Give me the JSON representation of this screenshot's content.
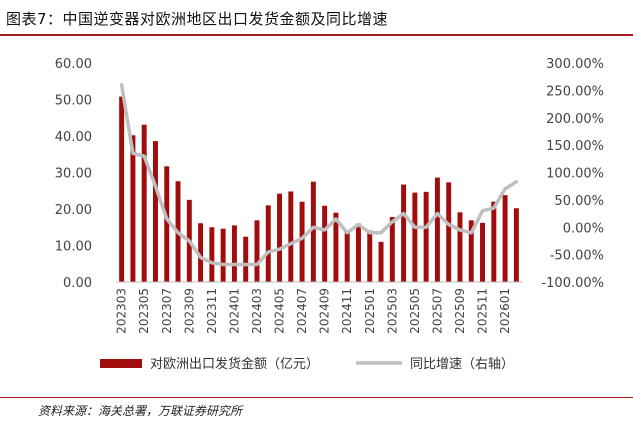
{
  "header": {
    "title": "图表7：中国逆变器对欧洲地区出口发货金额及同比增速"
  },
  "footer": {
    "source": "资料来源：海关总署，万联证券研究所"
  },
  "colors": {
    "bar": "#a10d0d",
    "line": "#bfbfbf",
    "accent": "#9c1b1b"
  },
  "chart_data": {
    "type": "bar",
    "x": [
      "202303",
      "202304",
      "202305",
      "202306",
      "202307",
      "202308",
      "202309",
      "202310",
      "202311",
      "202312",
      "202401",
      "202402",
      "202403",
      "202404",
      "202405",
      "202406",
      "202407",
      "202408",
      "202409",
      "202410",
      "202411",
      "202412",
      "202501",
      "202502",
      "202503",
      "202504",
      "202505",
      "202506",
      "202507",
      "202508",
      "202509",
      "202510",
      "202511",
      "202512",
      "202601",
      "202602"
    ],
    "x_tick_labels": [
      "202303",
      "202305",
      "202307",
      "202309",
      "202311",
      "202401",
      "202403",
      "202405",
      "202407",
      "202409",
      "202411",
      "202501",
      "202503",
      "202505",
      "202507",
      "202509",
      "202511",
      "202601"
    ],
    "series": [
      {
        "name": "对欧洲出口发货金额（亿元）",
        "type": "bar",
        "axis": "left",
        "values": [
          50.8,
          40.2,
          43.1,
          38.6,
          31.7,
          27.6,
          22.5,
          16.1,
          15.0,
          14.6,
          15.5,
          12.4,
          16.9,
          21.0,
          24.2,
          24.8,
          22.0,
          27.5,
          20.9,
          19.0,
          13.7,
          16.0,
          14.1,
          11.0,
          17.8,
          26.7,
          24.5,
          24.7,
          28.6,
          27.3,
          19.1,
          16.9,
          16.2,
          22.0,
          23.8,
          20.2
        ]
      },
      {
        "name": "同比增速（右轴）",
        "type": "line",
        "axis": "right",
        "values": [
          260,
          135,
          130,
          75,
          15,
          -10,
          -25,
          -55,
          -65,
          -68,
          -68,
          -68,
          -68,
          -45,
          -40,
          -30,
          -20,
          0,
          -5,
          15,
          -10,
          5,
          -10,
          -10,
          10,
          25,
          0,
          0,
          25,
          5,
          -5,
          -10,
          30,
          35,
          70,
          83
        ]
      }
    ],
    "y_left": {
      "min": 0,
      "max": 60,
      "ticks": [
        "0.00",
        "10.00",
        "20.00",
        "30.00",
        "40.00",
        "50.00",
        "60.00"
      ]
    },
    "y_right": {
      "min": -100,
      "max": 300,
      "ticks": [
        "-100.00%",
        "-50.00%",
        "0.00%",
        "50.00%",
        "100.00%",
        "150.00%",
        "200.00%",
        "250.00%",
        "300.00%"
      ]
    },
    "legend_position": "bottom",
    "grid": false
  }
}
